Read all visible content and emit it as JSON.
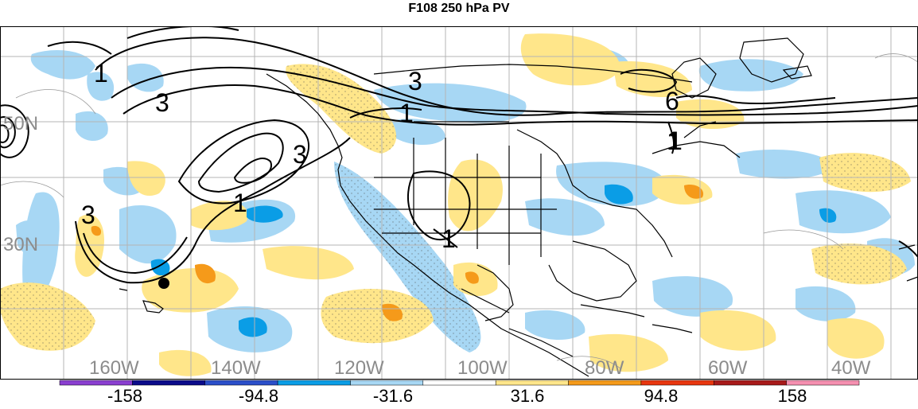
{
  "title": "F108 250 hPa PV",
  "map": {
    "lat_labels": [
      "50N",
      "30N"
    ],
    "lon_labels": [
      "160W",
      "140W",
      "120W",
      "100W",
      "80W",
      "60W",
      "40W"
    ],
    "contour_labels": [
      "1",
      "3",
      "3",
      "1",
      "3",
      "1",
      "3",
      "1",
      "1",
      "6",
      "1"
    ]
  },
  "colorbar": {
    "labels": [
      "-158",
      "-94.8",
      "-31.6",
      "31.6",
      "94.8",
      "158"
    ],
    "colors": [
      "#8a3fd0",
      "#0b0b8a",
      "#2b4fc9",
      "#0a9de6",
      "#a7d7f4",
      "#ffffff",
      "#ffe68a",
      "#f59a1a",
      "#e8360f",
      "#a81a1a",
      "#f58fb0"
    ]
  },
  "colors": {
    "light_blue": "#a7d7f4",
    "mid_blue": "#0a9de6",
    "light_yellow": "#ffe68a",
    "orange": "#f59a1a",
    "grid": "#b4b4b4",
    "contour": "#000000"
  }
}
